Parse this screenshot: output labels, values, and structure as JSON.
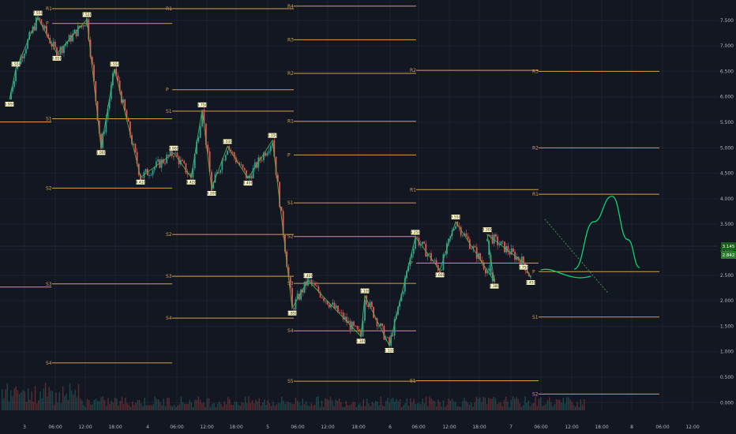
{
  "chart_data": {
    "type": "candlestick",
    "title": "",
    "y_axis": {
      "min": -0.15,
      "max": 7.9,
      "ticks": [
        "0.000",
        "0.500",
        "1.000",
        "1.500",
        "2.000",
        "2.500",
        "3.000",
        "3.500",
        "4.000",
        "4.500",
        "5.000",
        "5.500",
        "6.000",
        "6.500",
        "7.000",
        "7.500"
      ]
    },
    "x_axis": {
      "labels": [
        "3",
        "06:00",
        "12:00",
        "18:00",
        "4",
        "06:00",
        "12:00",
        "18:00",
        "5",
        "06:00",
        "12:00",
        "18:00",
        "6",
        "06:00",
        "12:00",
        "18:00",
        "7",
        "06:00",
        "12:00",
        "18:00",
        "8",
        "06:00",
        "12:00"
      ]
    },
    "current_price_tags": [
      "3.145",
      "2.842"
    ],
    "colors": {
      "background": "#131722",
      "up_candle": "#26a69a",
      "down_candle": "#ef5350",
      "pivot_lines": "#d1a050",
      "zigzag": "#4caf50",
      "forecast": "#00e676",
      "zigzag_label_bg": "#fff9c4"
    },
    "pivot_periods": [
      {
        "levels": [
          {
            "name": "R1",
            "value": 7.73
          },
          {
            "name": "P",
            "value": 7.44
          },
          {
            "name": "S1",
            "value": 5.57
          },
          {
            "name": "S2",
            "value": 4.21
          },
          {
            "name": "S3",
            "value": 2.33
          },
          {
            "name": "S4",
            "value": 0.78
          }
        ]
      },
      {
        "levels": [
          {
            "name": "R1",
            "value": 7.73
          },
          {
            "name": "P",
            "value": 6.14
          },
          {
            "name": "S1",
            "value": 5.72
          },
          {
            "name": "S2",
            "value": 3.3
          },
          {
            "name": "S3",
            "value": 2.48
          },
          {
            "name": "S4",
            "value": 1.66
          }
        ]
      },
      {
        "levels": [
          {
            "name": "R4",
            "value": 7.78
          },
          {
            "name": "R3",
            "value": 7.12
          },
          {
            "name": "R2",
            "value": 6.46
          },
          {
            "name": "R1",
            "value": 5.52
          },
          {
            "name": "P",
            "value": 4.86
          },
          {
            "name": "S1",
            "value": 3.92
          },
          {
            "name": "S2",
            "value": 3.26
          },
          {
            "name": "S3",
            "value": 2.34
          },
          {
            "name": "S4",
            "value": 1.41
          },
          {
            "name": "S5",
            "value": 0.42
          }
        ]
      },
      {
        "levels": [
          {
            "name": "R2",
            "value": 6.52
          },
          {
            "name": "R1",
            "value": 4.18
          },
          {
            "name": "P",
            "value": 2.74
          },
          {
            "name": "S1",
            "value": 0.43
          }
        ]
      },
      {
        "levels": [
          {
            "name": "R3",
            "value": 6.5
          },
          {
            "name": "R2",
            "value": 5.0
          },
          {
            "name": "R1",
            "value": 4.09
          },
          {
            "name": "P",
            "value": 2.57
          },
          {
            "name": "S1",
            "value": 1.68
          },
          {
            "name": "S2",
            "value": 0.17
          }
        ]
      }
    ],
    "zigzag_points": [
      {
        "value": 5.95,
        "label": "5.950"
      },
      {
        "value": 6.55,
        "label": "6.550"
      },
      {
        "value": 7.55,
        "label": "7.550"
      },
      {
        "value": 6.85,
        "label": "6.850"
      },
      {
        "value": 7.52,
        "label": "7.520"
      },
      {
        "value": 5.0,
        "label": "5.000"
      },
      {
        "value": 6.55,
        "label": "6.550"
      },
      {
        "value": 4.42,
        "label": "4.420"
      },
      {
        "value": 4.9,
        "label": "4.900"
      },
      {
        "value": 4.42,
        "label": "4.420"
      },
      {
        "value": 5.75,
        "label": "5.750"
      },
      {
        "value": 4.2,
        "label": "4.200"
      },
      {
        "value": 5.03,
        "label": "5.030"
      },
      {
        "value": 4.4,
        "label": "4.400"
      },
      {
        "value": 5.15,
        "label": "5.150"
      },
      {
        "value": 1.85,
        "label": "1.850"
      },
      {
        "value": 2.4,
        "label": "2.400"
      },
      {
        "value": 1.3,
        "label": "1.300"
      },
      {
        "value": 2.1,
        "label": "2.100"
      },
      {
        "value": 1.12,
        "label": "1.120"
      },
      {
        "value": 3.25,
        "label": "3.250"
      },
      {
        "value": 2.6,
        "label": "2.600"
      },
      {
        "value": 3.55,
        "label": "3.550"
      },
      {
        "value": 2.38,
        "label": "2.380"
      },
      {
        "value": 3.3,
        "label": "3.300"
      },
      {
        "value": 2.75,
        "label": "2.750"
      },
      {
        "value": 2.45,
        "label": "2.450"
      }
    ],
    "forecast_path": [
      {
        "value": 2.62
      },
      {
        "value": 3.55
      },
      {
        "value": 4.05
      },
      {
        "value": 3.2
      },
      {
        "value": 2.65
      }
    ],
    "trend_line": [
      {
        "value": 3.6
      },
      {
        "value": 2.15
      }
    ]
  }
}
